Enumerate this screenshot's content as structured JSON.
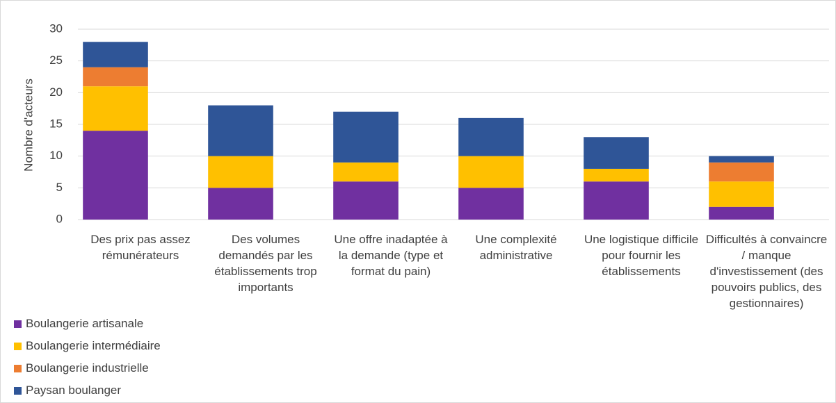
{
  "chart_data": {
    "type": "stacked_bar",
    "y_label": "Nombre d'acteurs",
    "categories": [
      "Des prix pas assez rémunérateurs",
      "Des volumes demandés par les établissements trop importants",
      "Une offre inadaptée à la demande (type et format du pain)",
      "Une complexité administrative",
      "Une logistique difficile pour fournir les établissements",
      "Difficultés à convaincre / manque d'investissement (des pouvoirs publics, des gestionnaires)"
    ],
    "series": [
      {
        "name": "Boulangerie artisanale",
        "color": "#7030a0",
        "values": [
          14,
          5,
          6,
          5,
          6,
          2
        ]
      },
      {
        "name": "Boulangerie intermédiaire",
        "color": "#ffc000",
        "values": [
          7,
          5,
          3,
          5,
          2,
          4
        ]
      },
      {
        "name": "Boulangerie industrielle",
        "color": "#ed7d31",
        "values": [
          3,
          0,
          0,
          0,
          0,
          3
        ]
      },
      {
        "name": "Paysan boulanger",
        "color": "#2f5597",
        "values": [
          4,
          8,
          8,
          6,
          5,
          1
        ]
      }
    ],
    "ylim": [
      0,
      30
    ],
    "yticks": [
      0,
      5,
      10,
      15,
      20,
      25,
      30
    ],
    "grid": true,
    "legend": "bottom-left"
  }
}
